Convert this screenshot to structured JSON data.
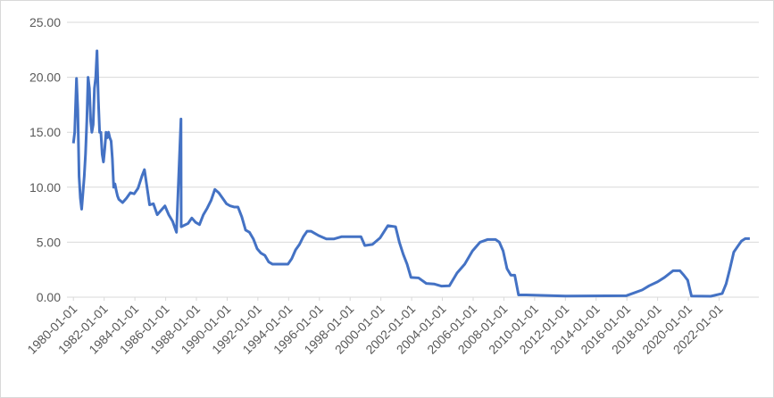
{
  "chart_data": {
    "type": "line",
    "x": [
      "1980-01-01",
      "1980-02-01",
      "1980-03-15",
      "1980-04-15",
      "1980-05-15",
      "1980-06-15",
      "1980-07-15",
      "1980-08-15",
      "1980-09-15",
      "1980-10-15",
      "1980-11-15",
      "1980-12-15",
      "1981-01-15",
      "1981-02-15",
      "1981-03-15",
      "1981-04-15",
      "1981-05-15",
      "1981-06-15",
      "1981-07-15",
      "1981-08-15",
      "1981-09-15",
      "1981-10-15",
      "1981-11-15",
      "1981-12-15",
      "1982-01-15",
      "1982-02-15",
      "1982-03-15",
      "1982-04-15",
      "1982-05-15",
      "1982-06-15",
      "1982-07-15",
      "1982-08-15",
      "1982-09-15",
      "1982-10-15",
      "1982-11-15",
      "1982-12-15",
      "1983-03-15",
      "1983-06-15",
      "1983-09-15",
      "1983-12-15",
      "1984-03-15",
      "1984-06-15",
      "1984-08-15",
      "1984-10-15",
      "1984-12-15",
      "1985-03-15",
      "1985-06-15",
      "1985-09-15",
      "1985-12-15",
      "1986-03-15",
      "1986-06-15",
      "1986-09-15",
      "1986-12-31",
      "1987-01-05",
      "1987-06-15",
      "1987-09-15",
      "1987-12-15",
      "1988-03-15",
      "1988-06-15",
      "1988-09-15",
      "1988-12-15",
      "1989-03-15",
      "1989-06-15",
      "1989-09-15",
      "1989-12-15",
      "1990-03-15",
      "1990-06-15",
      "1990-09-15",
      "1990-12-15",
      "1991-03-15",
      "1991-06-15",
      "1991-09-15",
      "1991-12-15",
      "1992-03-15",
      "1992-06-15",
      "1992-09-15",
      "1992-12-15",
      "1993-06-15",
      "1993-12-15",
      "1994-03-15",
      "1994-06-15",
      "1994-09-15",
      "1994-12-15",
      "1995-03-15",
      "1995-06-15",
      "1995-09-15",
      "1995-12-15",
      "1996-06-15",
      "1996-12-15",
      "1997-06-15",
      "1997-12-15",
      "1998-06-15",
      "1998-09-15",
      "1998-12-15",
      "1999-06-15",
      "1999-12-15",
      "2000-06-15",
      "2000-12-15",
      "2001-03-15",
      "2001-06-15",
      "2001-09-15",
      "2001-12-15",
      "2002-06-15",
      "2002-12-15",
      "2003-06-15",
      "2003-12-15",
      "2004-06-15",
      "2004-12-15",
      "2005-06-15",
      "2005-12-15",
      "2006-06-15",
      "2006-12-15",
      "2007-06-15",
      "2007-09-15",
      "2007-12-15",
      "2008-03-15",
      "2008-06-15",
      "2008-09-15",
      "2008-12-15",
      "2009-06-15",
      "2012-01-01",
      "2015-12-15",
      "2016-06-15",
      "2017-01-01",
      "2017-06-15",
      "2018-01-01",
      "2018-06-15",
      "2019-01-01",
      "2019-06-15",
      "2019-09-15",
      "2019-12-15",
      "2020-03-15",
      "2021-06-15",
      "2022-03-15",
      "2022-06-15",
      "2022-09-15",
      "2022-12-15",
      "2023-03-15",
      "2023-06-15",
      "2023-09-15",
      "2023-12-31"
    ],
    "series": [
      {
        "color": "#4472c4",
        "values": [
          14,
          15,
          19.9,
          17,
          11,
          9,
          8,
          9.5,
          11,
          13,
          16,
          20,
          19,
          16,
          15,
          15.7,
          19,
          20,
          22.4,
          18,
          15,
          15,
          13,
          12.3,
          13.5,
          15,
          14.5,
          15,
          14.5,
          14.2,
          12.6,
          10,
          10.3,
          9.7,
          9.2,
          8.9,
          8.6,
          9,
          9.5,
          9.4,
          9.9,
          11,
          11.6,
          10,
          8.4,
          8.5,
          7.5,
          7.9,
          8.3,
          7.5,
          6.9,
          5.9,
          16.2,
          6.4,
          6.7,
          7.2,
          6.8,
          6.6,
          7.5,
          8.1,
          8.8,
          9.8,
          9.5,
          9,
          8.5,
          8.3,
          8.2,
          8.2,
          7.3,
          6.1,
          5.9,
          5.3,
          4.4,
          4,
          3.8,
          3.2,
          3,
          3,
          3,
          3.5,
          4.3,
          4.8,
          5.5,
          6,
          6,
          5.8,
          5.6,
          5.3,
          5.3,
          5.5,
          5.5,
          5.5,
          5.5,
          4.7,
          4.8,
          5.4,
          6.5,
          6.4,
          5,
          3.9,
          3,
          1.8,
          1.75,
          1.25,
          1.2,
          1,
          1.03,
          2.2,
          3,
          4.2,
          5,
          5.25,
          5.25,
          5,
          4.2,
          2.6,
          2,
          2,
          0.2,
          0.2,
          0.1,
          0.13,
          0.38,
          0.66,
          1.04,
          1.4,
          1.8,
          2.4,
          2.4,
          2,
          1.55,
          0.1,
          0.08,
          0.33,
          1.2,
          2.6,
          4.1,
          4.6,
          5.1,
          5.33,
          5.33
        ]
      }
    ],
    "xlim": [
      "1979-08-01",
      "2024-08-01"
    ],
    "xticks": [
      "1980-01-01",
      "1982-01-01",
      "1984-01-01",
      "1986-01-01",
      "1988-01-01",
      "1990-01-01",
      "1992-01-01",
      "1994-01-01",
      "1996-01-01",
      "1998-01-01",
      "2000-01-01",
      "2002-01-01",
      "2004-01-01",
      "2006-01-01",
      "2008-01-01",
      "2010-01-01",
      "2012-01-01",
      "2014-01-01",
      "2016-01-01",
      "2018-01-01",
      "2020-01-01",
      "2022-01-01"
    ],
    "ylim": [
      0,
      25
    ],
    "yticks": [
      {
        "value": 0,
        "label": "0.00"
      },
      {
        "value": 5,
        "label": "5.00"
      },
      {
        "value": 10,
        "label": "10.00"
      },
      {
        "value": 15,
        "label": "15.00"
      },
      {
        "value": 20,
        "label": "20.00"
      },
      {
        "value": 25,
        "label": "25.00"
      }
    ],
    "grid": true
  }
}
